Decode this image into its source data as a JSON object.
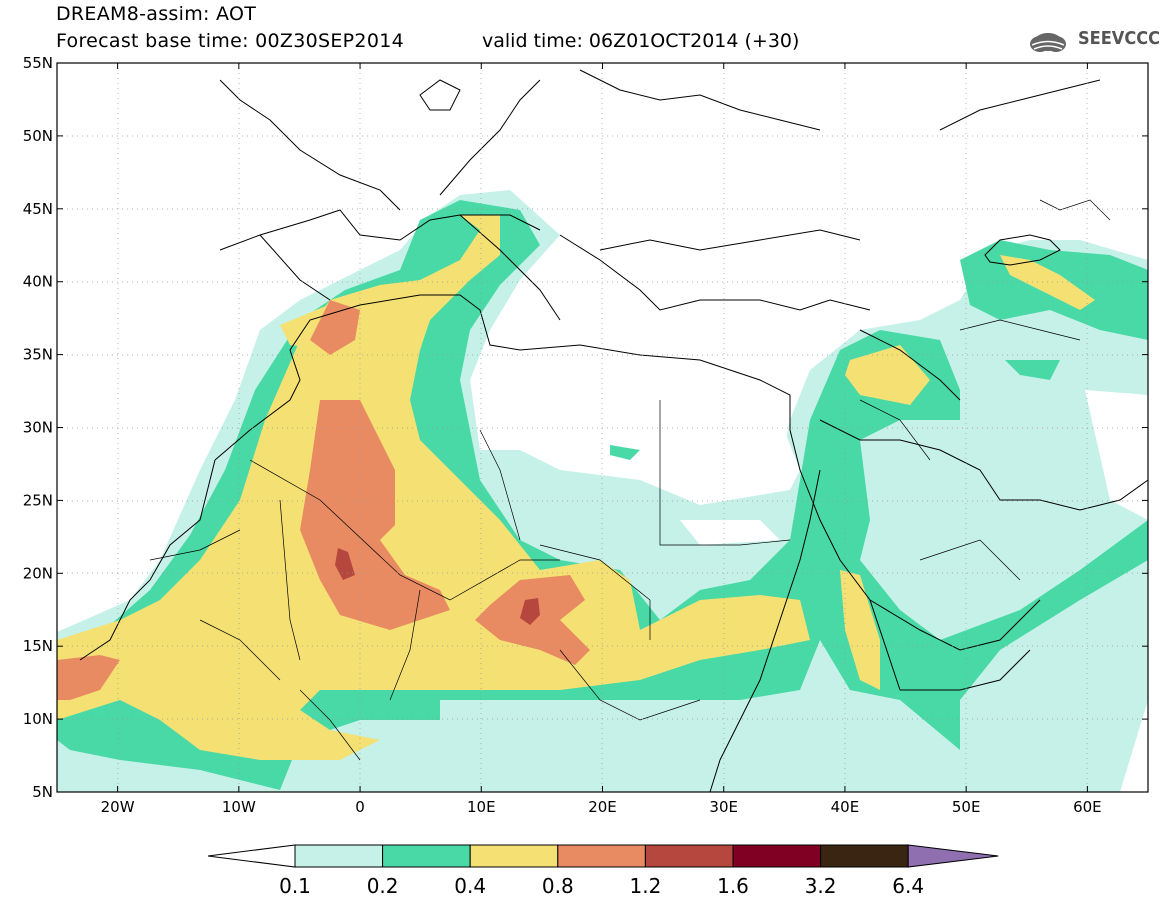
{
  "header": {
    "title": "DREAM8-assim: AOT",
    "base_time": "Forecast base time: 00Z30SEP2014",
    "valid_time": "valid time: 06Z01OCT2014 (+30)",
    "logo_text": "SEEVCCC"
  },
  "map": {
    "lon_range": [
      -25,
      65
    ],
    "lat_range": [
      5,
      55
    ],
    "lat_ticks": [
      "55N",
      "50N",
      "45N",
      "40N",
      "35N",
      "30N",
      "25N",
      "20N",
      "15N",
      "10N",
      "5N"
    ],
    "lon_ticks": [
      "20W",
      "10W",
      "0",
      "10E",
      "20E",
      "30E",
      "40E",
      "50E",
      "60E"
    ],
    "ocean_color": "#ffffff",
    "coastline_color": "#000000"
  },
  "colorbar": {
    "levels": [
      "0.1",
      "0.2",
      "0.4",
      "0.8",
      "1.2",
      "1.6",
      "3.2",
      "6.4"
    ],
    "colors": [
      "#c6f1e9",
      "#48d9a6",
      "#f5e173",
      "#e98b62",
      "#b5473f",
      "#800024",
      "#3a2412",
      "#8f6fb0"
    ]
  }
}
